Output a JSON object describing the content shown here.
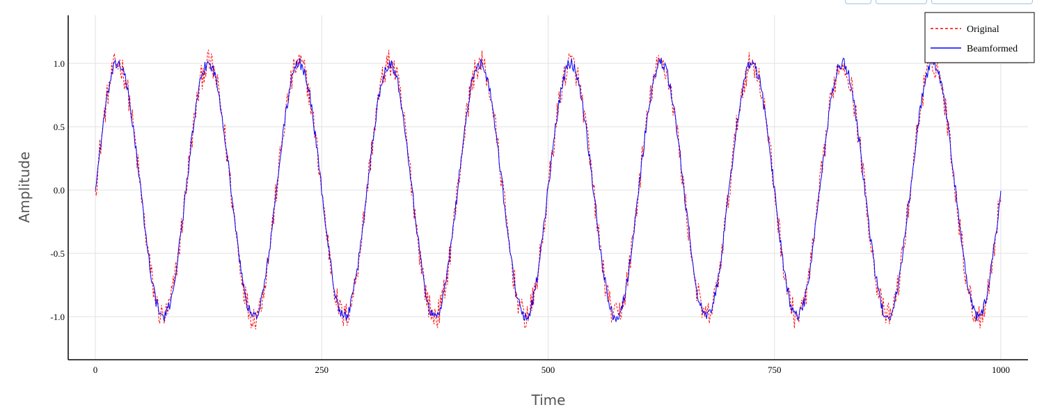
{
  "chart_data": {
    "type": "line",
    "xlabel": "Time",
    "ylabel": "Amplitude",
    "xlim": [
      -30,
      1030
    ],
    "ylim": [
      -1.34,
      1.38
    ],
    "xticks": [
      0,
      250,
      500,
      750,
      1000
    ],
    "xtick_labels": [
      "0",
      "250",
      "500",
      "750",
      "1000"
    ],
    "yticks": [
      -1.0,
      -0.5,
      0.0,
      0.5,
      1.0
    ],
    "ytick_labels": [
      "-1.0",
      "-0.5",
      "0.0",
      "0.5",
      "1.0"
    ],
    "grid": true,
    "legend_position": "top-right",
    "signal": {
      "amplitude": 1.0,
      "cycles": 10,
      "x_start": 0,
      "x_end": 1000,
      "samples": 1000
    },
    "series": [
      {
        "name": "Original",
        "color": "#ff0000",
        "style": "dashed",
        "noise_amplitude": 0.11
      },
      {
        "name": "Beamformed",
        "color": "#0000ff",
        "style": "solid",
        "noise_amplitude": 0.045
      }
    ]
  }
}
